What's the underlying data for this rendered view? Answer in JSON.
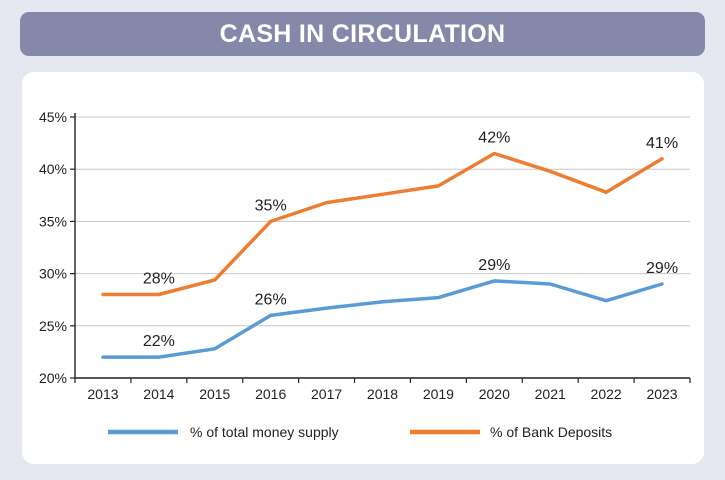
{
  "title": "CASH IN CIRCULATION",
  "colors": {
    "money_supply": "#5b9bd5",
    "bank_deposits": "#ed7d31",
    "title_bg": "#8588a8",
    "grid": "#c8c8c8"
  },
  "chart_data": {
    "type": "line",
    "title": "CASH IN CIRCULATION",
    "x": [
      "2013",
      "2014",
      "2015",
      "2016",
      "2017",
      "2018",
      "2019",
      "2020",
      "2021",
      "2022",
      "2023"
    ],
    "series": [
      {
        "name": "% of total money supply",
        "values": [
          22,
          22,
          22.8,
          26,
          26.7,
          27.3,
          27.7,
          29.3,
          29,
          27.4,
          29
        ]
      },
      {
        "name": "% of Bank Deposits",
        "values": [
          28,
          28,
          29.4,
          35,
          36.8,
          37.6,
          38.4,
          41.5,
          39.8,
          37.8,
          41
        ]
      }
    ],
    "data_labels": [
      {
        "series": 0,
        "index": 1,
        "text": "22%"
      },
      {
        "series": 0,
        "index": 3,
        "text": "26%"
      },
      {
        "series": 0,
        "index": 7,
        "text": "29%"
      },
      {
        "series": 0,
        "index": 10,
        "text": "29%"
      },
      {
        "series": 1,
        "index": 1,
        "text": "28%"
      },
      {
        "series": 1,
        "index": 3,
        "text": "35%"
      },
      {
        "series": 1,
        "index": 7,
        "text": "42%"
      },
      {
        "series": 1,
        "index": 10,
        "text": "41%"
      }
    ],
    "yticks": [
      "20%",
      "25%",
      "30%",
      "35%",
      "40%",
      "45%"
    ],
    "ylim": [
      20,
      45
    ],
    "xlabel": "",
    "ylabel": "",
    "grid": true,
    "legend": "bottom"
  }
}
